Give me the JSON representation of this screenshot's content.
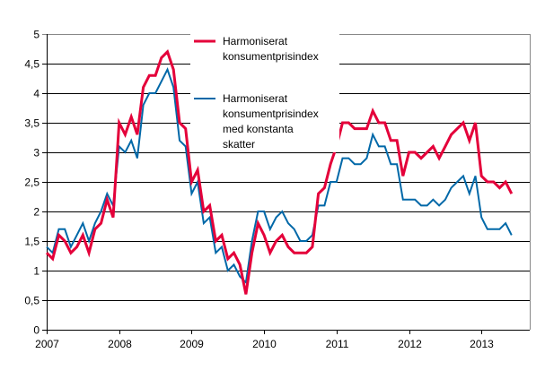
{
  "chart_data": {
    "type": "line",
    "title": "",
    "xlabel": "",
    "ylabel": "",
    "ylim": [
      0,
      5
    ],
    "yticks": [
      "0",
      "0,5",
      "1",
      "1,5",
      "2",
      "2,5",
      "3",
      "3,5",
      "4",
      "4,5",
      "5"
    ],
    "xticks": [
      "2007",
      "2008",
      "2009",
      "2010",
      "2011",
      "2012",
      "2013"
    ],
    "x_start": "2007-01",
    "x_frequency": "monthly",
    "grid": true,
    "legend_position": "top-center",
    "series": [
      {
        "name": "Harmoniserat konsumentprisindex",
        "legend_lines": [
          "Harmoniserat",
          "konsumentprisindex"
        ],
        "color": "#e4003a",
        "values": [
          1.3,
          1.2,
          1.6,
          1.5,
          1.3,
          1.4,
          1.6,
          1.3,
          1.7,
          1.8,
          2.2,
          1.9,
          3.5,
          3.3,
          3.6,
          3.3,
          4.1,
          4.3,
          4.3,
          4.6,
          4.7,
          4.4,
          3.5,
          3.4,
          2.5,
          2.7,
          2.0,
          2.1,
          1.5,
          1.6,
          1.2,
          1.3,
          1.1,
          0.6,
          1.3,
          1.8,
          1.6,
          1.3,
          1.5,
          1.6,
          1.4,
          1.3,
          1.3,
          1.3,
          1.4,
          2.3,
          2.4,
          2.8,
          3.1,
          3.5,
          3.5,
          3.4,
          3.4,
          3.4,
          3.7,
          3.5,
          3.5,
          3.2,
          3.2,
          2.6,
          3.0,
          3.0,
          2.9,
          3.0,
          3.1,
          2.9,
          3.1,
          3.3,
          3.4,
          3.5,
          3.2,
          3.5,
          2.6,
          2.5,
          2.5,
          2.4,
          2.5,
          2.3
        ]
      },
      {
        "name": "Harmoniserat konsumentprisindex med konstanta skatter",
        "legend_lines": [
          "Harmoniserat",
          "konsumentprisindex",
          "med konstanta",
          "skatter"
        ],
        "color": "#0068a8",
        "values": [
          1.4,
          1.3,
          1.7,
          1.7,
          1.4,
          1.6,
          1.8,
          1.5,
          1.8,
          2.0,
          2.3,
          2.1,
          3.1,
          3.0,
          3.2,
          2.9,
          3.8,
          4.0,
          4.0,
          4.2,
          4.4,
          4.1,
          3.2,
          3.1,
          2.3,
          2.5,
          1.8,
          1.9,
          1.3,
          1.4,
          1.0,
          1.1,
          0.9,
          0.8,
          1.5,
          2.0,
          2.0,
          1.7,
          1.9,
          2.0,
          1.8,
          1.7,
          1.5,
          1.5,
          1.6,
          2.1,
          2.1,
          2.5,
          2.5,
          2.9,
          2.9,
          2.8,
          2.8,
          2.9,
          3.3,
          3.1,
          3.1,
          2.8,
          2.8,
          2.2,
          2.2,
          2.2,
          2.1,
          2.1,
          2.2,
          2.1,
          2.2,
          2.4,
          2.5,
          2.6,
          2.3,
          2.6,
          1.9,
          1.7,
          1.7,
          1.7,
          1.8,
          1.6
        ]
      }
    ]
  }
}
